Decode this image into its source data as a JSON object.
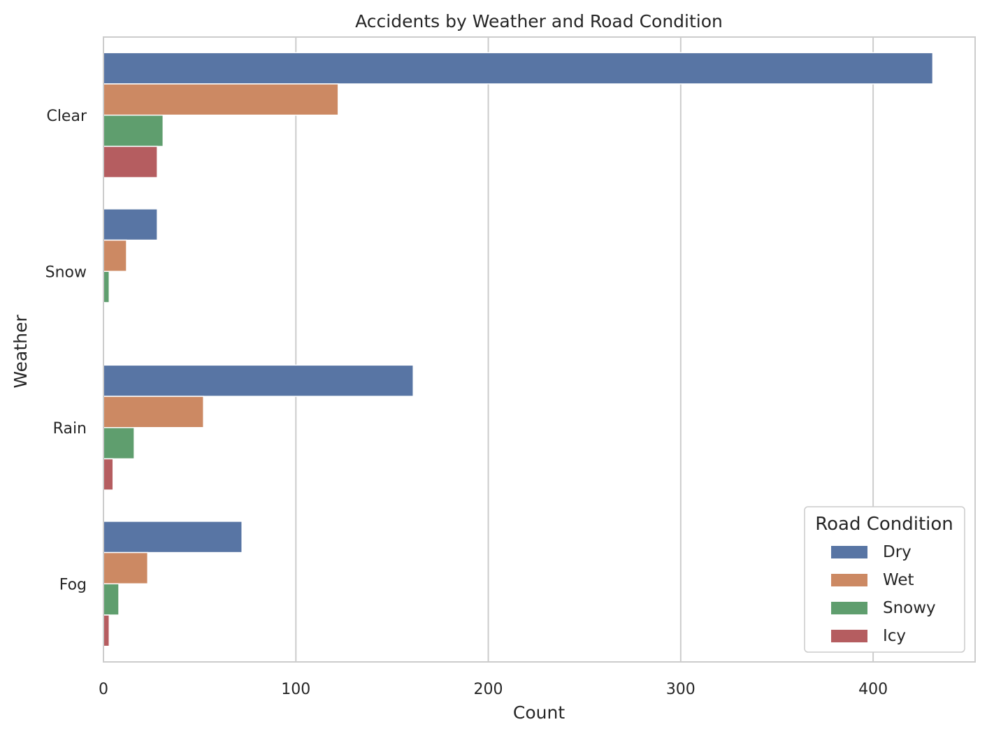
{
  "chart_data": {
    "type": "bar",
    "orientation": "horizontal",
    "title": "Accidents by Weather and Road Condition",
    "xlabel": "Count",
    "ylabel": "Weather",
    "categories": [
      "Clear",
      "Snow",
      "Rain",
      "Fog"
    ],
    "series": [
      {
        "name": "Dry",
        "color": "#5875a4",
        "values": [
          431,
          28,
          161,
          72
        ]
      },
      {
        "name": "Wet",
        "color": "#cc8963",
        "values": [
          122,
          12,
          52,
          23
        ]
      },
      {
        "name": "Snowy",
        "color": "#5f9e6e",
        "values": [
          31,
          3,
          16,
          8
        ]
      },
      {
        "name": "Icy",
        "color": "#b55d60",
        "values": [
          28,
          0.5,
          5,
          3
        ]
      }
    ],
    "xlim": [
      0,
      453
    ],
    "xticks": [
      0,
      100,
      200,
      300,
      400
    ],
    "grid": true,
    "legend": {
      "title": "Road Condition",
      "placement": "lower-right"
    }
  }
}
